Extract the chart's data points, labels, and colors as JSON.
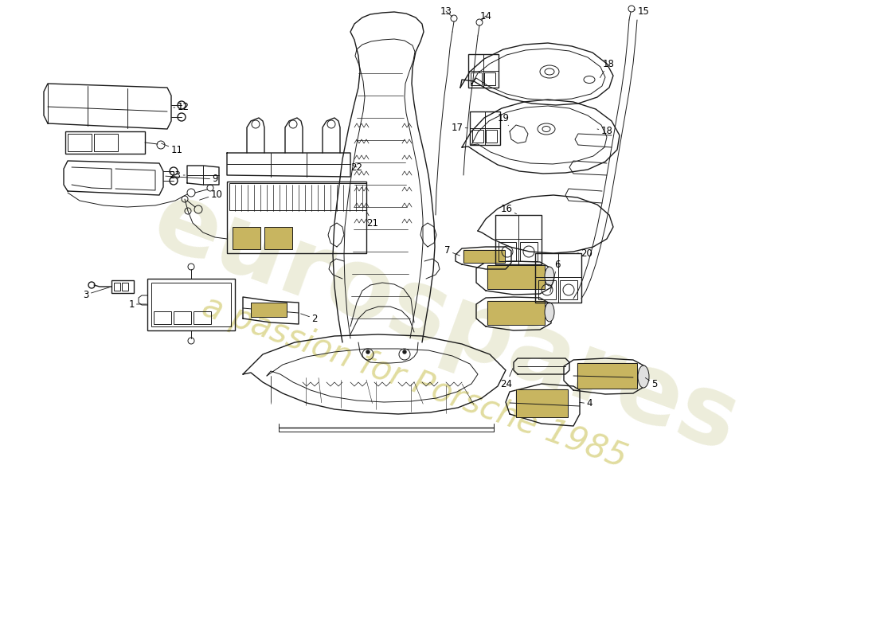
{
  "background_color": "#ffffff",
  "line_color": "#1a1a1a",
  "gold_color": "#c8b560",
  "label_fontsize": 8.5,
  "watermark1": "eurospares",
  "watermark2": "a passion for Porsche 1985",
  "wm_color1": "#d8d8b0",
  "wm_color2": "#c8c050",
  "fig_width": 11.0,
  "fig_height": 8.0,
  "dpi": 100
}
